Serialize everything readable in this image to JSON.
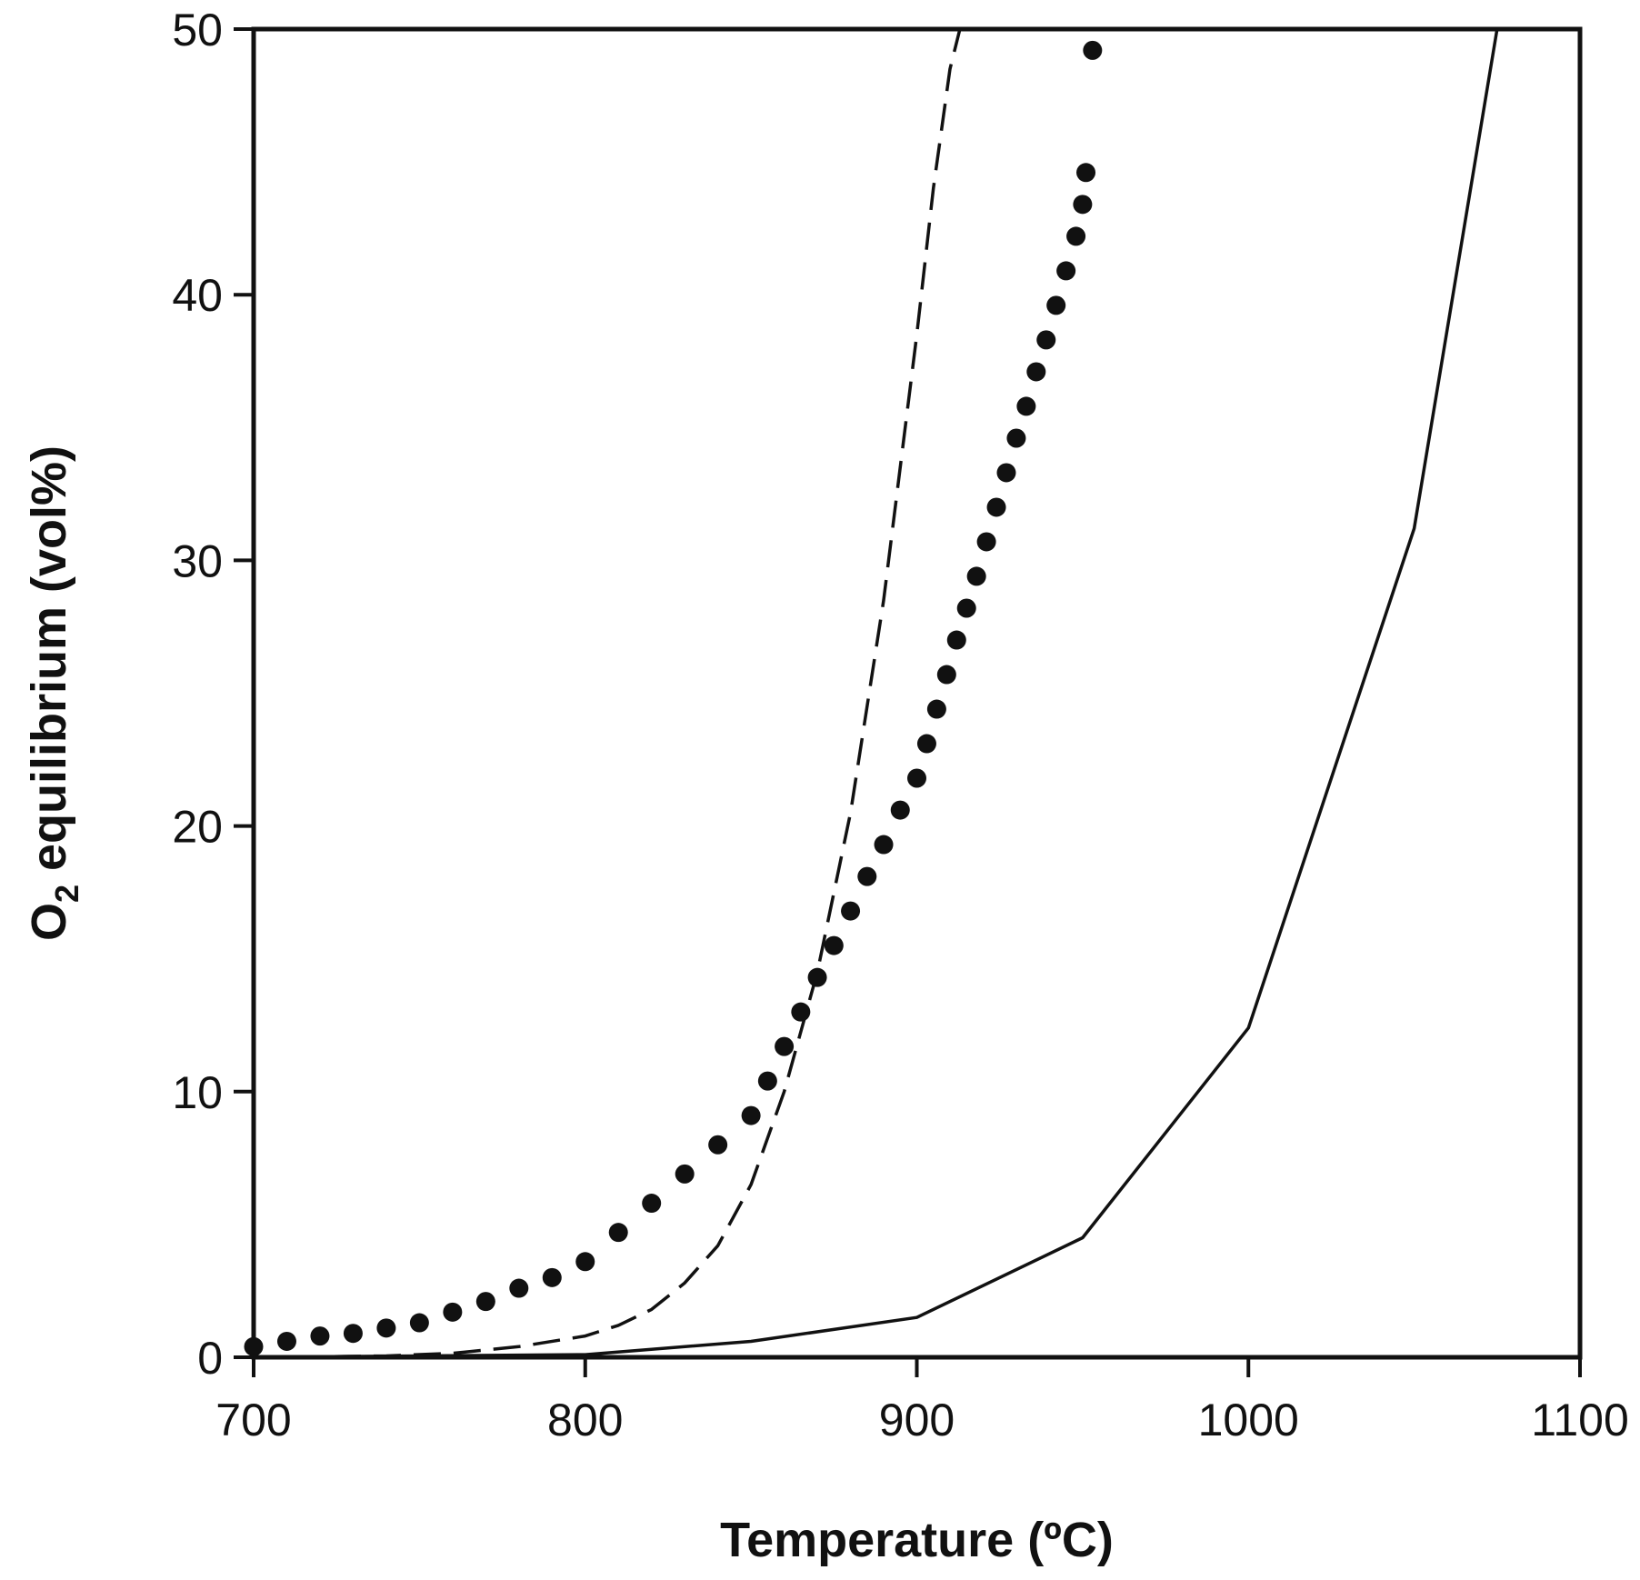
{
  "chart_data": {
    "type": "line",
    "xlabel": "Temperature (ºC)",
    "ylabel_parts": [
      "O",
      "2",
      " equilibrium (vol%)"
    ],
    "xlim": [
      700,
      1100
    ],
    "ylim": [
      0,
      50
    ],
    "x_ticks": [
      700,
      800,
      900,
      1000,
      1100
    ],
    "y_ticks": [
      0,
      10,
      20,
      30,
      40,
      50
    ],
    "grid": false,
    "legend": "none",
    "colors": {
      "series": "#111111",
      "axis": "#111111",
      "background": "#ffffff"
    },
    "series": [
      {
        "style": "dashed",
        "x": [
          700,
          720,
          740,
          760,
          780,
          800,
          810,
          820,
          830,
          840,
          850,
          860,
          870,
          880,
          890,
          900,
          905,
          910,
          913
        ],
        "y": [
          0,
          0.02,
          0.05,
          0.15,
          0.4,
          0.8,
          1.2,
          1.8,
          2.8,
          4.2,
          6.5,
          10.0,
          14.5,
          20.5,
          28.5,
          38.5,
          44.0,
          48.5,
          50
        ]
      },
      {
        "style": "dotted",
        "x": [
          700,
          710,
          720,
          730,
          740,
          750,
          760,
          770,
          780,
          790,
          800,
          810,
          820,
          830,
          840,
          850,
          855,
          860,
          865,
          870,
          875,
          880,
          885,
          890,
          895,
          900,
          903,
          906,
          909,
          912,
          915,
          918,
          921,
          924,
          927,
          930,
          933,
          936,
          939,
          942,
          945,
          948,
          950,
          951,
          953
        ],
        "y": [
          0.4,
          0.6,
          0.8,
          0.9,
          1.1,
          1.3,
          1.7,
          2.1,
          2.6,
          3.0,
          3.6,
          4.7,
          5.8,
          6.9,
          8.0,
          9.1,
          10.4,
          11.7,
          13.0,
          14.3,
          15.5,
          16.8,
          18.1,
          19.3,
          20.6,
          21.8,
          23.1,
          24.4,
          25.7,
          27.0,
          28.2,
          29.4,
          30.7,
          32.0,
          33.3,
          34.6,
          35.8,
          37.1,
          38.3,
          39.6,
          40.9,
          42.2,
          43.4,
          44.6,
          49.2
        ]
      },
      {
        "style": "solid",
        "x": [
          700,
          750,
          800,
          850,
          900,
          950,
          1000,
          1050,
          1075
        ],
        "y": [
          0,
          0.05,
          0.1,
          0.6,
          1.5,
          4.5,
          12.4,
          31.2,
          50
        ]
      }
    ]
  }
}
